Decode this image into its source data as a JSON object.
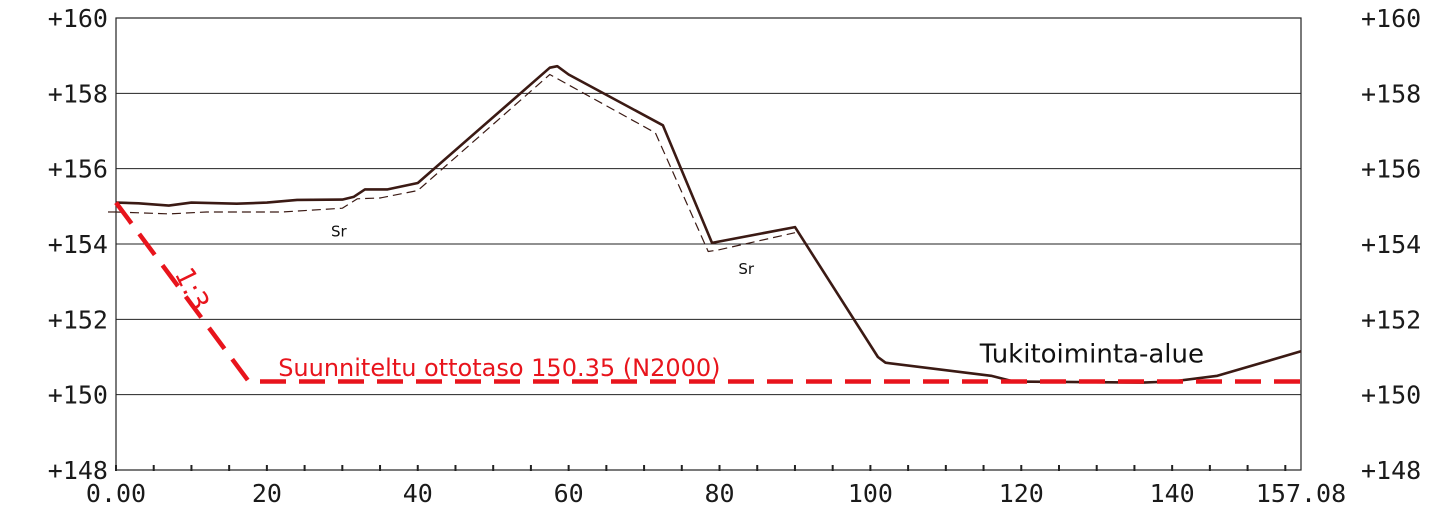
{
  "chart_data": {
    "type": "line",
    "x_ticks": [
      "0.00",
      "20",
      "40",
      "60",
      "80",
      "100",
      "120",
      "140",
      "157.08"
    ],
    "x_tick_values": [
      0,
      20,
      40,
      60,
      80,
      100,
      120,
      140,
      157.08
    ],
    "y_ticks": [
      "+148",
      "+150",
      "+152",
      "+154",
      "+156",
      "+158",
      "+160"
    ],
    "y_tick_values": [
      148,
      150,
      152,
      154,
      156,
      158,
      160
    ],
    "xlim": [
      0,
      157.08
    ],
    "ylim": [
      148,
      160
    ],
    "grid": "horizontal",
    "series": [
      {
        "key": "ground",
        "style": "solid",
        "color": "#3b1a14",
        "x": [
          0,
          3,
          7,
          10,
          16,
          20,
          24,
          30,
          31.5,
          33,
          36,
          40,
          57.5,
          58.5,
          60,
          72.5,
          79,
          90,
          101,
          102,
          116,
          119,
          136,
          140,
          146,
          157.08
        ],
        "y": [
          155.1,
          155.08,
          155.02,
          155.1,
          155.07,
          155.1,
          155.17,
          155.18,
          155.25,
          155.45,
          155.45,
          155.62,
          158.68,
          158.72,
          158.5,
          157.15,
          154.03,
          154.45,
          151.0,
          150.85,
          150.5,
          150.35,
          150.32,
          150.35,
          150.5,
          151.15
        ]
      },
      {
        "key": "reference",
        "style": "dashed",
        "color": "#3b1a14",
        "x": [
          0,
          7,
          12,
          22,
          30,
          32,
          35,
          40,
          57.5,
          71.5,
          78.5,
          80,
          90
        ],
        "y": [
          154.85,
          154.8,
          154.85,
          154.85,
          154.95,
          155.2,
          155.22,
          155.42,
          158.5,
          156.95,
          153.8,
          153.85,
          154.3
        ]
      },
      {
        "key": "planned",
        "style": "heavy-dashed",
        "color": "#e8141c",
        "x": [
          0,
          17.6,
          157.08
        ],
        "y": [
          155.1,
          150.35,
          150.35
        ]
      }
    ],
    "annotations": [
      {
        "key": "slope",
        "text": "1:3",
        "x": 9.0,
        "y": 152.7,
        "color": "#e8141c",
        "size": 27,
        "rotate": 64
      },
      {
        "key": "planned-level",
        "text": "Suunniteltu ottotaso  150.35 (N2000)",
        "x": 21.5,
        "y": 150.5,
        "color": "#e8141c",
        "size": 24
      },
      {
        "key": "area",
        "text": "Tukitoiminta-alue",
        "x": 114.5,
        "y": 150.85,
        "color": "#111111",
        "size": 26
      },
      {
        "key": "sr-1",
        "text": "Sr",
        "x": 28.5,
        "y": 154.2,
        "color": "#111111",
        "size": 15
      },
      {
        "key": "sr-2",
        "text": "Sr",
        "x": 82.5,
        "y": 153.2,
        "color": "#111111",
        "size": 15
      }
    ]
  }
}
